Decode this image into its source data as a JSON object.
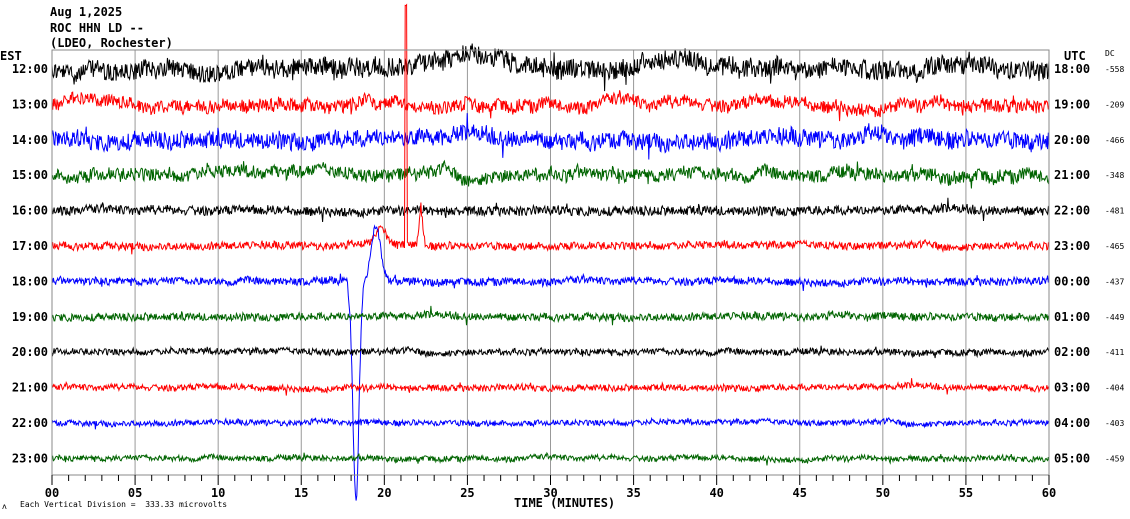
{
  "chart_data": {
    "type": "line",
    "title_lines": [
      "Aug 1,2025",
      "ROC HHN LD --",
      "(LDEO, Rochester)"
    ],
    "left_axis_label": "EST",
    "right_axis_label": "UTC",
    "dc_label": "DC",
    "xlabel": "TIME (MINUTES)",
    "xlim": [
      0,
      60
    ],
    "x_ticks": [
      "00",
      "05",
      "10",
      "15",
      "20",
      "25",
      "30",
      "35",
      "40",
      "45",
      "50",
      "55",
      "60"
    ],
    "footer": "Each Vertical Division =  333.33 microvolts",
    "footer_mark": "ʌ",
    "rows": [
      {
        "est": "12:00",
        "utc": "18:00",
        "dc": "-558",
        "color": "#000000",
        "noise": 0.45
      },
      {
        "est": "13:00",
        "utc": "19:00",
        "dc": "-209",
        "color": "#ff0000",
        "noise": 0.3
      },
      {
        "est": "14:00",
        "utc": "20:00",
        "dc": "-466",
        "color": "#0000ff",
        "noise": 0.4
      },
      {
        "est": "15:00",
        "utc": "21:00",
        "dc": "-348",
        "color": "#006400",
        "noise": 0.3
      },
      {
        "est": "16:00",
        "utc": "22:00",
        "dc": "-481",
        "color": "#000000",
        "noise": 0.22
      },
      {
        "est": "17:00",
        "utc": "23:00",
        "dc": "-465",
        "color": "#ff0000",
        "noise": 0.18
      },
      {
        "est": "18:00",
        "utc": "00:00",
        "dc": "-437",
        "color": "#0000ff",
        "noise": 0.18
      },
      {
        "est": "19:00",
        "utc": "01:00",
        "dc": "-449",
        "color": "#006400",
        "noise": 0.18
      },
      {
        "est": "20:00",
        "utc": "02:00",
        "dc": "-411",
        "color": "#000000",
        "noise": 0.15
      },
      {
        "est": "21:00",
        "utc": "03:00",
        "dc": "-404",
        "color": "#ff0000",
        "noise": 0.15
      },
      {
        "est": "22:00",
        "utc": "04:00",
        "dc": "-403",
        "color": "#0000ff",
        "noise": 0.13
      },
      {
        "est": "23:00",
        "utc": "05:00",
        "dc": "-459",
        "color": "#006400",
        "noise": 0.13
      }
    ]
  }
}
